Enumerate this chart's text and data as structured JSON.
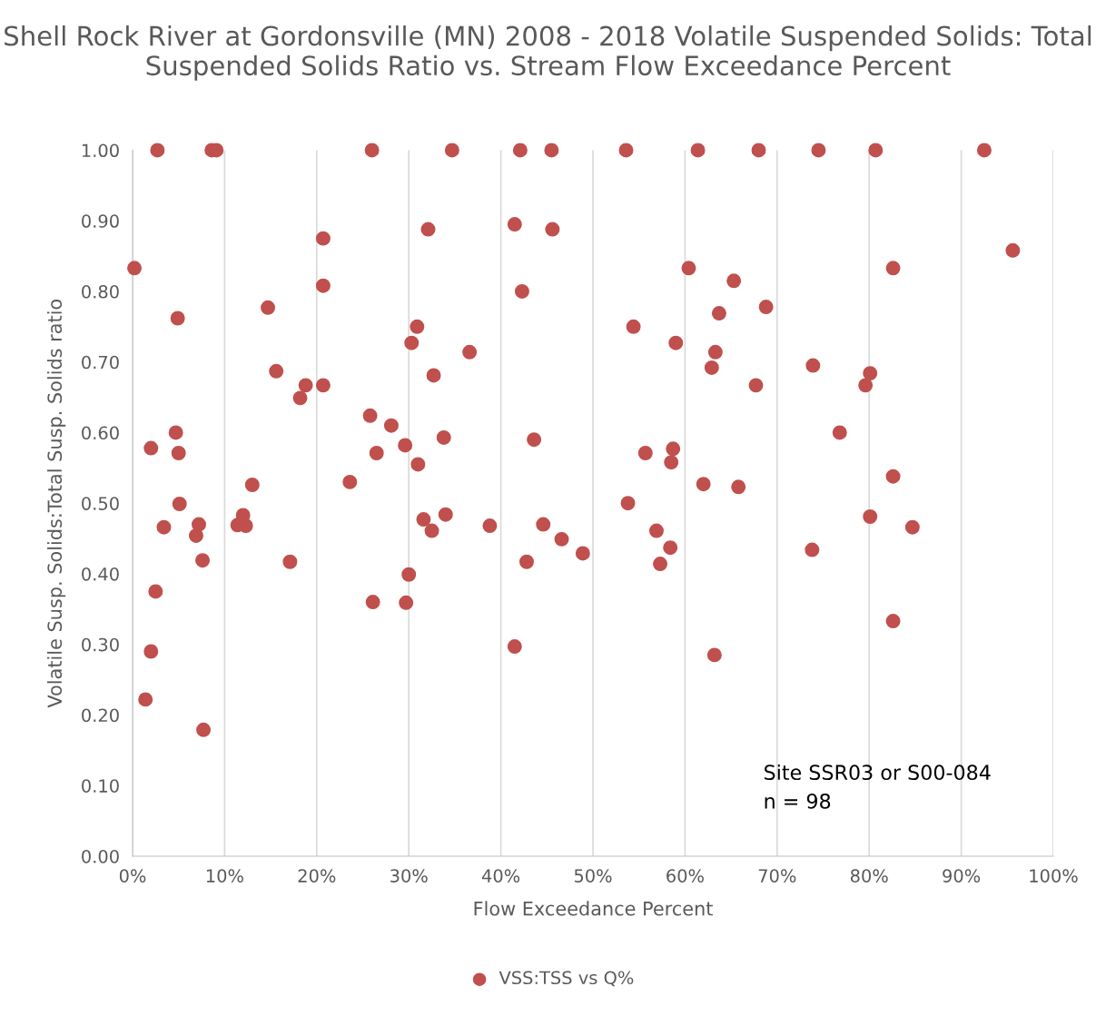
{
  "chart_data": {
    "type": "scatter",
    "title": "Shell Rock River at Gordonsville (MN) 2008 - 2018 Volatile Suspended Solids: Total Suspended Solids Ratio vs. Stream Flow Exceedance Percent",
    "xlabel": "Flow Exceedance Percent",
    "ylabel": "Volatile Susp. Solids:Total Susp. Solids ratio",
    "annotations": [
      "Site SSR03 or S00-084\nn = 98"
    ],
    "series": [
      {
        "name": "VSS:TSS vs Q%",
        "color": "#c0504d",
        "x": [
          0.2,
          2.7,
          8.6,
          9.1,
          26.0,
          34.7,
          42.1,
          45.5,
          53.6,
          61.4,
          68.0,
          74.5,
          80.7,
          92.5,
          95.6,
          2.0,
          1.4,
          2.0,
          2.5,
          3.4,
          4.7,
          4.9,
          5.0,
          5.1,
          6.9,
          7.2,
          7.6,
          7.7,
          11.4,
          12.0,
          12.3,
          13.0,
          14.7,
          15.6,
          17.1,
          18.2,
          18.8,
          20.7,
          20.7,
          20.7,
          23.6,
          25.8,
          26.1,
          26.5,
          28.1,
          29.6,
          29.7,
          30.0,
          30.3,
          30.9,
          31.0,
          31.6,
          32.1,
          32.5,
          32.7,
          33.8,
          34.0,
          36.6,
          38.8,
          41.5,
          41.5,
          42.3,
          42.8,
          43.6,
          44.6,
          45.6,
          46.6,
          48.9,
          53.8,
          54.4,
          55.7,
          56.9,
          57.3,
          58.4,
          58.5,
          58.7,
          59.0,
          60.4,
          62.0,
          62.9,
          63.2,
          63.3,
          63.7,
          65.3,
          65.8,
          67.7,
          68.8,
          73.8,
          73.9,
          76.8,
          79.6,
          80.1,
          80.1,
          82.6,
          82.6,
          82.6,
          84.7
        ],
        "values": [
          0.833,
          1.0,
          1.0,
          1.0,
          1.0,
          1.0,
          1.0,
          1.0,
          1.0,
          1.0,
          1.0,
          1.0,
          1.0,
          1.0,
          0.858,
          0.578,
          0.222,
          0.29,
          0.375,
          0.466,
          0.6,
          0.762,
          0.571,
          0.499,
          0.454,
          0.47,
          0.419,
          0.179,
          0.469,
          0.483,
          0.468,
          0.526,
          0.777,
          0.687,
          0.417,
          0.649,
          0.667,
          0.875,
          0.808,
          0.667,
          0.53,
          0.624,
          0.36,
          0.571,
          0.61,
          0.582,
          0.359,
          0.399,
          0.727,
          0.75,
          0.555,
          0.477,
          0.888,
          0.461,
          0.681,
          0.593,
          0.484,
          0.714,
          0.468,
          0.895,
          0.297,
          0.8,
          0.417,
          0.59,
          0.47,
          0.888,
          0.449,
          0.429,
          0.5,
          0.75,
          0.571,
          0.461,
          0.414,
          0.437,
          0.558,
          0.577,
          0.727,
          0.833,
          0.527,
          0.692,
          0.285,
          0.714,
          0.769,
          0.815,
          0.523,
          0.667,
          0.778,
          0.434,
          0.695,
          0.6,
          0.667,
          0.684,
          0.481,
          0.333,
          0.538,
          0.833,
          0.466
        ]
      }
    ],
    "xlim": [
      0,
      100
    ],
    "xticks": [
      {
        "value": 0,
        "label": "0%"
      },
      {
        "value": 10,
        "label": "10%"
      },
      {
        "value": 20,
        "label": "20%"
      },
      {
        "value": 30,
        "label": "30%"
      },
      {
        "value": 40,
        "label": "40%"
      },
      {
        "value": 50,
        "label": "50%"
      },
      {
        "value": 60,
        "label": "60%"
      },
      {
        "value": 70,
        "label": "70%"
      },
      {
        "value": 80,
        "label": "80%"
      },
      {
        "value": 90,
        "label": "90%"
      },
      {
        "value": 100,
        "label": "100%"
      }
    ],
    "ylim": [
      0,
      1
    ],
    "yticks": [
      {
        "value": 0,
        "label": "0.00"
      },
      {
        "value": 0.1,
        "label": "0.10"
      },
      {
        "value": 0.2,
        "label": "0.20"
      },
      {
        "value": 0.3,
        "label": "0.30"
      },
      {
        "value": 0.4,
        "label": "0.40"
      },
      {
        "value": 0.5,
        "label": "0.50"
      },
      {
        "value": 0.6,
        "label": "0.60"
      },
      {
        "value": 0.7,
        "label": "0.70"
      },
      {
        "value": 0.8,
        "label": "0.80"
      },
      {
        "value": 0.9,
        "label": "0.90"
      },
      {
        "value": 1,
        "label": "1.00"
      }
    ],
    "grid": "x",
    "legend": "bottom",
    "marker": "circle"
  }
}
